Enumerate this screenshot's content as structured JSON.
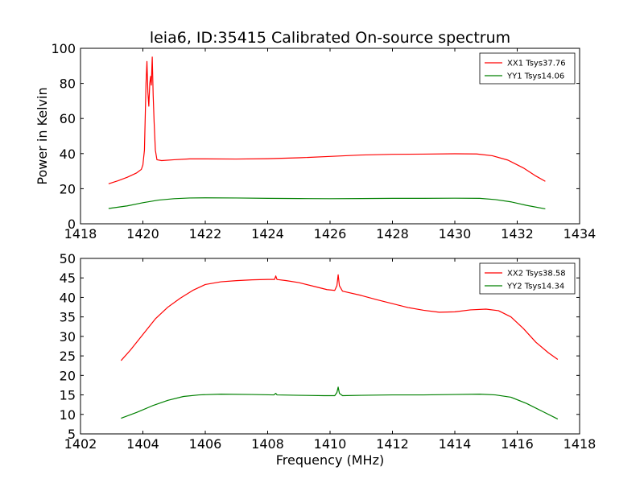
{
  "figure": {
    "title": "leia6, ID:35415 Calibrated On-source spectrum"
  },
  "chart_data": [
    {
      "type": "line",
      "title": "leia6, ID:35415 Calibrated On-source spectrum",
      "xlabel": "",
      "ylabel": "Power in Kelvin",
      "xlim": [
        1418,
        1434
      ],
      "ylim": [
        0,
        100
      ],
      "xticks": [
        1418,
        1420,
        1422,
        1424,
        1426,
        1428,
        1430,
        1432,
        1434
      ],
      "yticks": [
        0,
        20,
        40,
        60,
        80,
        100
      ],
      "grid": false,
      "legend_position": "top-right",
      "series": [
        {
          "name": "XX1 Tsys37.76",
          "color": "#ff0000",
          "points": [
            [
              1418.9,
              22.8
            ],
            [
              1419.2,
              24.5
            ],
            [
              1419.5,
              26.5
            ],
            [
              1419.8,
              29.0
            ],
            [
              1419.95,
              31.0
            ],
            [
              1420.0,
              33.5
            ],
            [
              1420.05,
              42.0
            ],
            [
              1420.1,
              80.0
            ],
            [
              1420.13,
              92.5
            ],
            [
              1420.16,
              75.0
            ],
            [
              1420.19,
              67.0
            ],
            [
              1420.22,
              80.0
            ],
            [
              1420.25,
              84.0
            ],
            [
              1420.27,
              79.0
            ],
            [
              1420.3,
              95.0
            ],
            [
              1420.33,
              73.0
            ],
            [
              1420.36,
              58.0
            ],
            [
              1420.4,
              42.0
            ],
            [
              1420.45,
              36.5
            ],
            [
              1420.6,
              36.0
            ],
            [
              1421.0,
              36.5
            ],
            [
              1421.5,
              37.0
            ],
            [
              1422.0,
              37.0
            ],
            [
              1423.0,
              36.9
            ],
            [
              1424.0,
              37.1
            ],
            [
              1425.0,
              37.6
            ],
            [
              1426.0,
              38.4
            ],
            [
              1427.0,
              39.2
            ],
            [
              1428.0,
              39.6
            ],
            [
              1429.0,
              39.7
            ],
            [
              1430.0,
              39.9
            ],
            [
              1430.7,
              39.8
            ],
            [
              1431.2,
              38.8
            ],
            [
              1431.7,
              36.3
            ],
            [
              1432.2,
              31.8
            ],
            [
              1432.6,
              27.2
            ],
            [
              1432.9,
              24.2
            ]
          ]
        },
        {
          "name": "YY1 Tsys14.06",
          "color": "#008000",
          "points": [
            [
              1418.9,
              8.7
            ],
            [
              1419.5,
              10.2
            ],
            [
              1420.0,
              12.0
            ],
            [
              1420.5,
              13.5
            ],
            [
              1421.0,
              14.3
            ],
            [
              1421.5,
              14.7
            ],
            [
              1422.0,
              14.8
            ],
            [
              1423.0,
              14.7
            ],
            [
              1424.0,
              14.5
            ],
            [
              1425.0,
              14.4
            ],
            [
              1426.0,
              14.3
            ],
            [
              1427.0,
              14.4
            ],
            [
              1428.0,
              14.5
            ],
            [
              1429.0,
              14.5
            ],
            [
              1430.0,
              14.6
            ],
            [
              1430.8,
              14.5
            ],
            [
              1431.3,
              13.8
            ],
            [
              1431.8,
              12.5
            ],
            [
              1432.3,
              10.5
            ],
            [
              1432.9,
              8.5
            ]
          ]
        }
      ]
    },
    {
      "type": "line",
      "title": "",
      "xlabel": "Frequency (MHz)",
      "ylabel": "",
      "xlim": [
        1402,
        1418
      ],
      "ylim": [
        5,
        50
      ],
      "xticks": [
        1402,
        1404,
        1406,
        1408,
        1410,
        1412,
        1414,
        1416,
        1418
      ],
      "yticks": [
        5,
        10,
        15,
        20,
        25,
        30,
        35,
        40,
        45,
        50
      ],
      "grid": false,
      "legend_position": "top-right",
      "series": [
        {
          "name": "XX2 Tsys38.58",
          "color": "#ff0000",
          "points": [
            [
              1403.3,
              23.8
            ],
            [
              1403.6,
              26.5
            ],
            [
              1404.0,
              30.5
            ],
            [
              1404.4,
              34.5
            ],
            [
              1404.8,
              37.5
            ],
            [
              1405.2,
              39.8
            ],
            [
              1405.6,
              41.8
            ],
            [
              1406.0,
              43.3
            ],
            [
              1406.5,
              44.0
            ],
            [
              1407.0,
              44.3
            ],
            [
              1407.5,
              44.5
            ],
            [
              1408.0,
              44.6
            ],
            [
              1408.22,
              44.6
            ],
            [
              1408.26,
              45.5
            ],
            [
              1408.3,
              44.6
            ],
            [
              1408.6,
              44.3
            ],
            [
              1409.0,
              43.8
            ],
            [
              1409.5,
              42.8
            ],
            [
              1409.9,
              42.0
            ],
            [
              1410.15,
              41.8
            ],
            [
              1410.22,
              43.0
            ],
            [
              1410.26,
              45.8
            ],
            [
              1410.3,
              43.0
            ],
            [
              1410.4,
              41.6
            ],
            [
              1411.0,
              40.5
            ],
            [
              1411.5,
              39.4
            ],
            [
              1412.0,
              38.4
            ],
            [
              1412.5,
              37.4
            ],
            [
              1413.0,
              36.7
            ],
            [
              1413.5,
              36.2
            ],
            [
              1414.0,
              36.3
            ],
            [
              1414.5,
              36.8
            ],
            [
              1415.0,
              37.0
            ],
            [
              1415.4,
              36.6
            ],
            [
              1415.8,
              35.0
            ],
            [
              1416.2,
              32.0
            ],
            [
              1416.6,
              28.5
            ],
            [
              1417.0,
              25.8
            ],
            [
              1417.3,
              24.1
            ]
          ]
        },
        {
          "name": "YY2 Tsys14.34",
          "color": "#008000",
          "points": [
            [
              1403.3,
              9.0
            ],
            [
              1403.8,
              10.5
            ],
            [
              1404.3,
              12.2
            ],
            [
              1404.8,
              13.6
            ],
            [
              1405.3,
              14.6
            ],
            [
              1405.8,
              15.0
            ],
            [
              1406.5,
              15.2
            ],
            [
              1407.5,
              15.1
            ],
            [
              1408.2,
              15.0
            ],
            [
              1408.26,
              15.4
            ],
            [
              1408.3,
              15.0
            ],
            [
              1409.0,
              14.9
            ],
            [
              1409.8,
              14.8
            ],
            [
              1410.15,
              14.8
            ],
            [
              1410.22,
              15.6
            ],
            [
              1410.26,
              17.0
            ],
            [
              1410.3,
              15.4
            ],
            [
              1410.4,
              14.8
            ],
            [
              1411.0,
              14.9
            ],
            [
              1412.0,
              15.0
            ],
            [
              1413.0,
              15.0
            ],
            [
              1414.0,
              15.1
            ],
            [
              1414.8,
              15.2
            ],
            [
              1415.3,
              15.0
            ],
            [
              1415.8,
              14.4
            ],
            [
              1416.3,
              12.8
            ],
            [
              1416.8,
              10.8
            ],
            [
              1417.3,
              8.8
            ]
          ]
        }
      ]
    }
  ]
}
